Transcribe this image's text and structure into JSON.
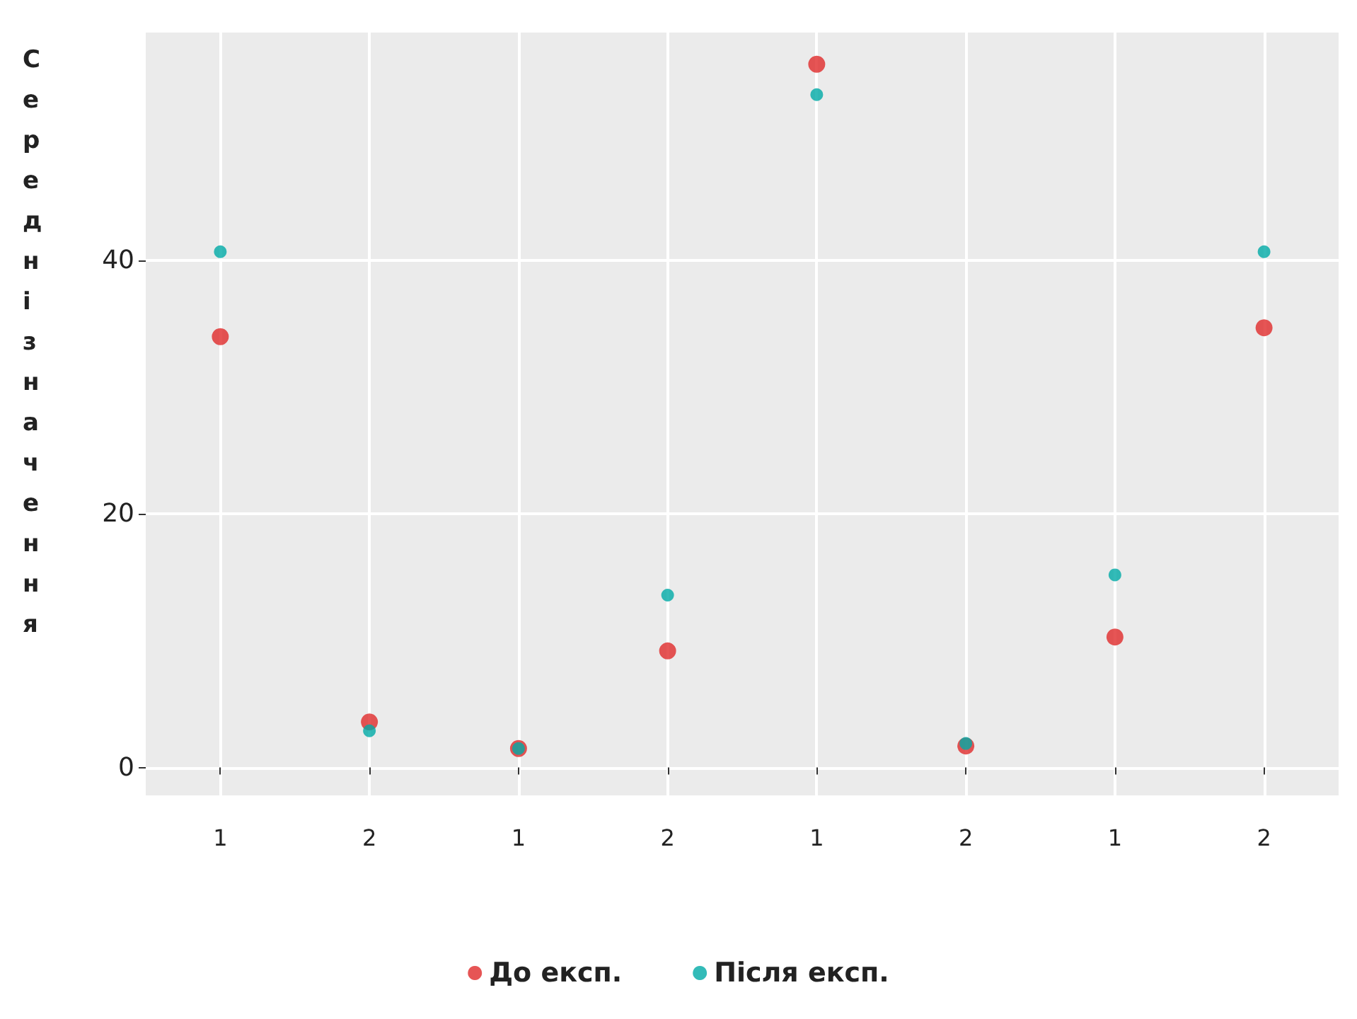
{
  "chart_data": {
    "type": "scatter",
    "ylabel": "Середні значення",
    "categories": [
      "1",
      "2",
      "1",
      "2",
      "1",
      "2",
      "1",
      "2"
    ],
    "series": [
      {
        "name": "До експ.",
        "color": "#e02b2b",
        "values": [
          34.0,
          3.6,
          1.5,
          9.2,
          55.5,
          1.7,
          10.3,
          34.7
        ]
      },
      {
        "name": "Після експ.",
        "color": "#00aaa6",
        "values": [
          40.7,
          2.9,
          1.5,
          13.6,
          53.1,
          1.9,
          15.2,
          40.7
        ]
      }
    ],
    "ylim": [
      -2.2,
      58
    ],
    "yticks": [
      0,
      20,
      40
    ],
    "grid": true,
    "legend": "bottom",
    "marker": "circle"
  }
}
